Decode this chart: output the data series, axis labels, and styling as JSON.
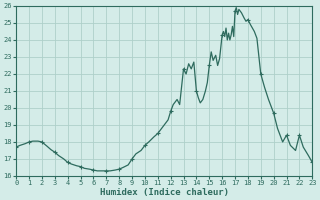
{
  "xlabel": "Humidex (Indice chaleur)",
  "line_color": "#2e6b5e",
  "marker_color": "#2e6b5e",
  "bg_color": "#d4ece8",
  "grid_color": "#aed0ca",
  "axes_color": "#2e6b5e",
  "ylim": [
    16,
    26
  ],
  "xlim": [
    0,
    23
  ],
  "yticks": [
    16,
    17,
    18,
    19,
    20,
    21,
    22,
    23,
    24,
    25,
    26
  ],
  "xticks": [
    0,
    1,
    2,
    3,
    4,
    5,
    6,
    7,
    8,
    9,
    10,
    11,
    12,
    13,
    14,
    15,
    16,
    17,
    18,
    19,
    20,
    21,
    22,
    23
  ],
  "x_detail": [
    0,
    0.3,
    0.7,
    1.0,
    1.3,
    1.7,
    2.0,
    2.4,
    2.7,
    3.0,
    3.3,
    3.7,
    4.0,
    4.3,
    4.7,
    5.0,
    5.3,
    5.7,
    6.0,
    6.3,
    6.7,
    7.0,
    7.3,
    7.7,
    8.0,
    8.3,
    8.7,
    9.0,
    9.3,
    9.7,
    10.0,
    10.3,
    10.7,
    11.0,
    11.3,
    11.6,
    11.8,
    12.0,
    12.2,
    12.5,
    12.7,
    13.0,
    13.2,
    13.4,
    13.6,
    13.8,
    14.0,
    14.15,
    14.3,
    14.5,
    14.7,
    14.85,
    15.0,
    15.15,
    15.3,
    15.5,
    15.65,
    15.8,
    16.0,
    16.1,
    16.2,
    16.3,
    16.4,
    16.5,
    16.6,
    16.7,
    16.8,
    16.9,
    17.0,
    17.1,
    17.2,
    17.3,
    17.5,
    17.7,
    17.85,
    18.0,
    18.2,
    18.5,
    18.7,
    19.0,
    19.3,
    19.6,
    19.9,
    20.0,
    20.3,
    20.7,
    21.0,
    21.3,
    21.7,
    22.0,
    22.3,
    22.7,
    23.0
  ],
  "y_detail": [
    17.7,
    17.8,
    17.9,
    18.0,
    18.05,
    18.05,
    18.0,
    17.75,
    17.55,
    17.4,
    17.2,
    17.0,
    16.8,
    16.7,
    16.6,
    16.55,
    16.45,
    16.4,
    16.35,
    16.3,
    16.3,
    16.3,
    16.3,
    16.35,
    16.4,
    16.5,
    16.65,
    17.0,
    17.3,
    17.5,
    17.8,
    18.0,
    18.3,
    18.5,
    18.8,
    19.1,
    19.3,
    19.8,
    20.2,
    20.5,
    20.2,
    22.3,
    22.0,
    22.6,
    22.3,
    22.7,
    21.0,
    20.6,
    20.3,
    20.5,
    21.0,
    21.5,
    22.5,
    23.3,
    22.8,
    23.1,
    22.5,
    22.9,
    24.3,
    24.5,
    24.2,
    24.7,
    24.0,
    24.4,
    24.0,
    24.3,
    24.8,
    24.2,
    25.7,
    25.9,
    25.5,
    25.8,
    25.6,
    25.3,
    25.1,
    25.2,
    24.9,
    24.5,
    24.1,
    22.0,
    21.2,
    20.5,
    19.9,
    19.7,
    18.8,
    18.0,
    18.4,
    17.8,
    17.5,
    18.4,
    17.7,
    17.2,
    16.8
  ],
  "x_markers": [
    0,
    1,
    2,
    3,
    4,
    5,
    6,
    7,
    8,
    9,
    10,
    11,
    12,
    13,
    14,
    15,
    16,
    17,
    18,
    19,
    20,
    21,
    22,
    23
  ],
  "y_markers": [
    17.7,
    18.0,
    18.0,
    17.4,
    16.8,
    16.55,
    16.35,
    16.3,
    16.4,
    17.0,
    17.8,
    18.5,
    19.8,
    22.3,
    21.0,
    22.5,
    24.3,
    25.7,
    25.2,
    22.0,
    19.7,
    18.4,
    18.4,
    16.8
  ]
}
